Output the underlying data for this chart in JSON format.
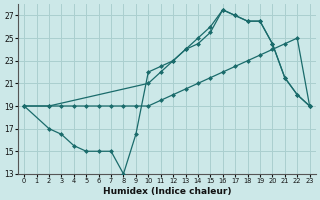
{
  "xlabel": "Humidex (Indice chaleur)",
  "bg_color": "#cce8e8",
  "grid_color": "#aacfcf",
  "line_color": "#1a6b6b",
  "xlim": [
    -0.5,
    23.5
  ],
  "ylim": [
    13,
    28
  ],
  "yticks": [
    13,
    15,
    17,
    19,
    21,
    23,
    25,
    27
  ],
  "xticks": [
    0,
    1,
    2,
    3,
    4,
    5,
    6,
    7,
    8,
    9,
    10,
    11,
    12,
    13,
    14,
    15,
    16,
    17,
    18,
    19,
    20,
    21,
    22,
    23
  ],
  "line1_x": [
    0,
    2,
    3,
    4,
    5,
    6,
    7,
    8,
    9,
    10,
    11,
    12,
    13,
    14,
    15,
    16,
    17,
    18,
    19,
    20,
    21,
    22,
    23
  ],
  "line1_y": [
    19,
    19,
    19,
    19,
    19,
    19,
    19,
    19,
    19,
    19,
    19.5,
    20,
    20.5,
    21,
    21.5,
    22,
    22.5,
    23,
    23.5,
    24,
    24.5,
    25,
    19
  ],
  "line2_x": [
    0,
    2,
    3,
    4,
    5,
    6,
    7,
    8,
    9,
    10,
    11,
    12,
    13,
    14,
    15,
    16,
    17,
    18,
    19,
    20,
    21,
    22,
    23
  ],
  "line2_y": [
    19,
    17,
    16.5,
    15.5,
    15,
    15,
    15,
    13,
    16.5,
    22,
    22.5,
    23,
    24,
    25,
    26,
    27.5,
    27,
    26.5,
    26.5,
    24.5,
    21.5,
    20,
    19
  ],
  "line3_x": [
    0,
    2,
    10,
    11,
    12,
    13,
    14,
    15,
    16,
    17,
    18,
    19,
    20,
    21,
    22,
    23
  ],
  "line3_y": [
    19,
    19,
    21,
    22,
    23,
    24,
    24.5,
    25.5,
    27.5,
    27,
    26.5,
    26.5,
    24.5,
    21.5,
    20,
    19
  ]
}
